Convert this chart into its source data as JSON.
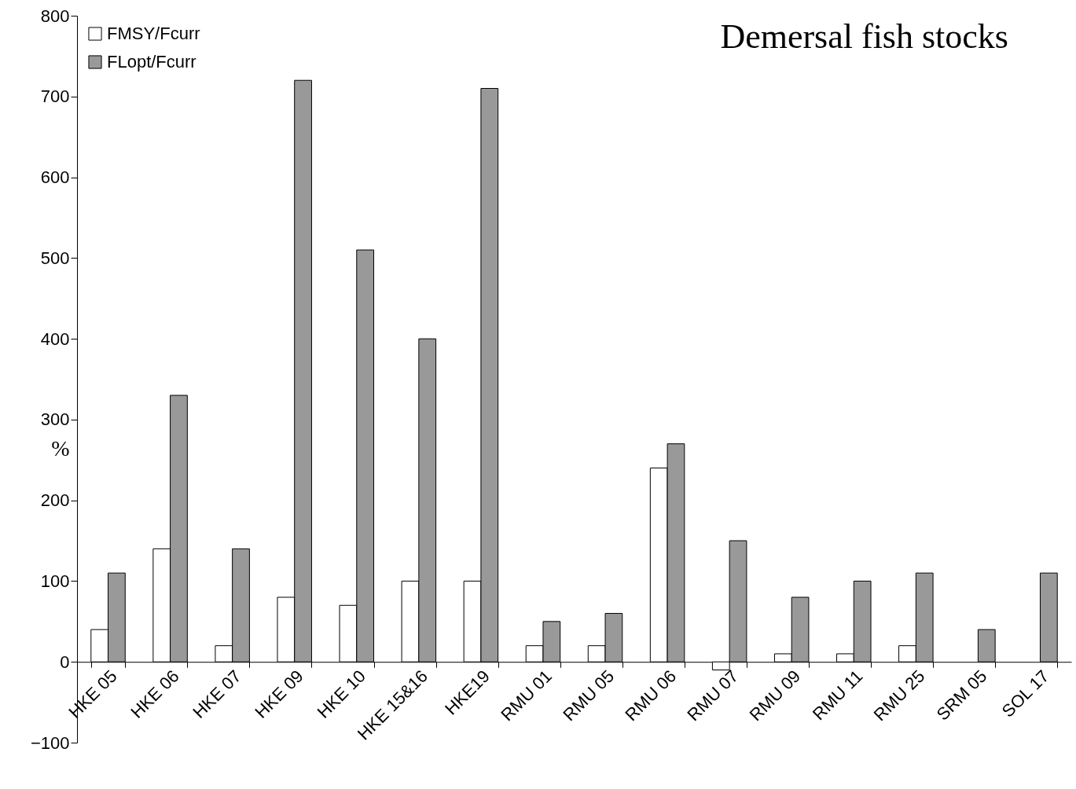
{
  "chart_data": {
    "type": "bar",
    "title": "Demersal fish stocks",
    "ylabel": "%",
    "categories": [
      "HKE 05",
      "HKE 06",
      "HKE 07",
      "HKE 09",
      "HKE 10",
      "HKE 15&16",
      "HKE19",
      "RMU 01",
      "RMU 05",
      "RMU 06",
      "RMU 07",
      "RMU 09",
      "RMU 11",
      "RMU 25",
      "SRM 05",
      "SOL 17"
    ],
    "series": [
      {
        "name": "FMSY/Fcurr",
        "color": "#ffffff",
        "values": [
          40,
          140,
          20,
          80,
          70,
          100,
          100,
          20,
          20,
          240,
          -10,
          10,
          10,
          20,
          null,
          null
        ]
      },
      {
        "name": "FLopt/Fcurr",
        "color": "#999999",
        "values": [
          110,
          330,
          140,
          720,
          510,
          400,
          710,
          50,
          60,
          270,
          150,
          80,
          100,
          110,
          40,
          110
        ]
      }
    ],
    "ylim": [
      -100,
      800
    ],
    "yticks": [
      -100,
      0,
      100,
      200,
      300,
      400,
      500,
      600,
      700,
      800
    ],
    "grid": false,
    "legend": "top left"
  }
}
